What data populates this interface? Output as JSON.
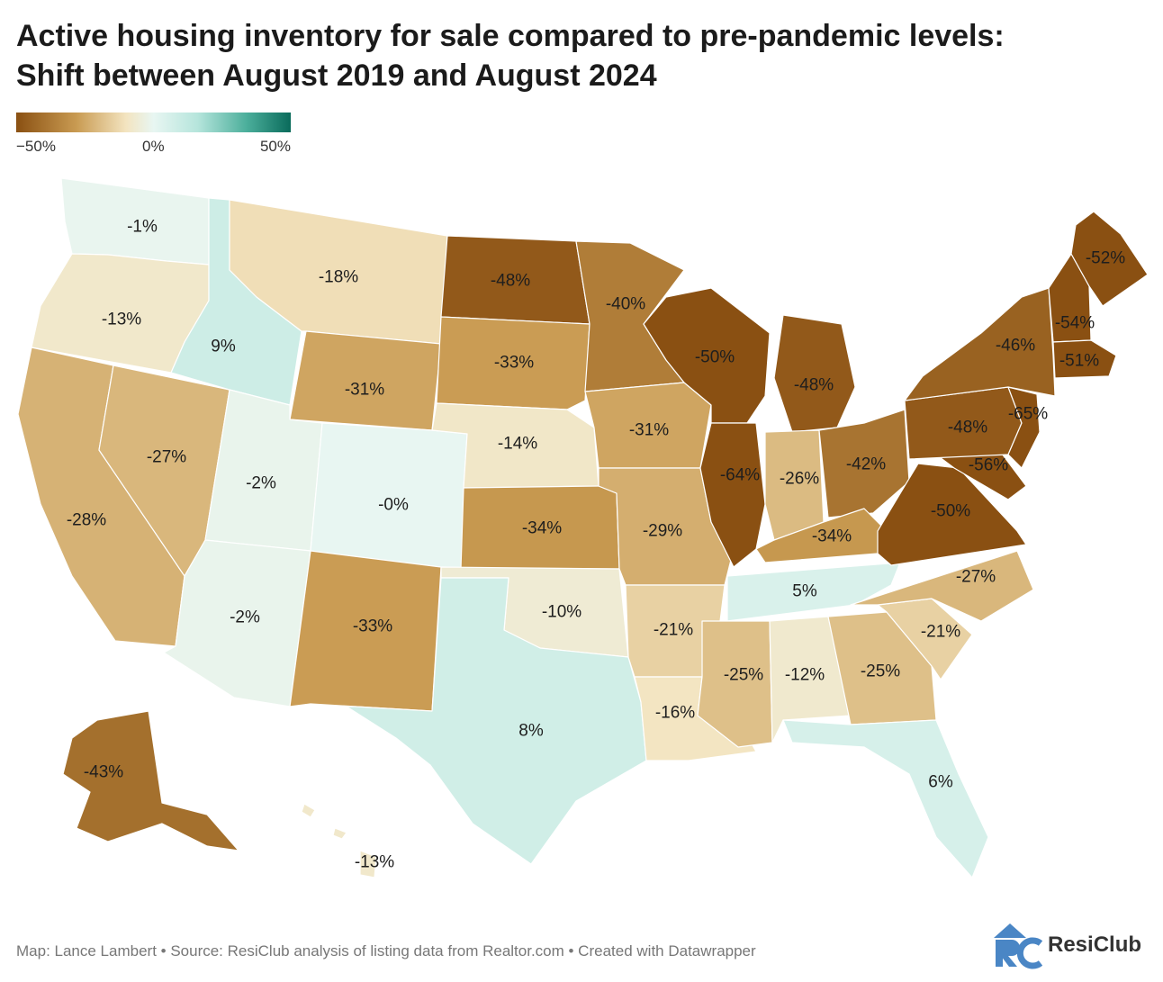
{
  "title": {
    "line1": "Active housing inventory for sale compared to pre-pandemic levels:",
    "line2": "Shift between August 2019 and August 2024"
  },
  "legend": {
    "min_label": "−50%",
    "mid_label": "0%",
    "max_label": "50%",
    "colors": [
      "#8a5012",
      "#c99b52",
      "#f3e4c0",
      "#e8f6f2",
      "#b6e5dc",
      "#4bae9b",
      "#0a6b5b"
    ]
  },
  "chart_data": {
    "type": "choropleth",
    "value_unit": "percent change",
    "color_domain": [
      -50,
      50
    ],
    "regions": [
      {
        "state": "Washington",
        "value": -1,
        "label": "-1%"
      },
      {
        "state": "Oregon",
        "value": -13,
        "label": "-13%"
      },
      {
        "state": "California",
        "value": -28,
        "label": "-28%"
      },
      {
        "state": "Nevada",
        "value": -27,
        "label": "-27%"
      },
      {
        "state": "Idaho",
        "value": 9,
        "label": "9%"
      },
      {
        "state": "Montana",
        "value": -18,
        "label": "-18%"
      },
      {
        "state": "Wyoming",
        "value": -31,
        "label": "-31%"
      },
      {
        "state": "Utah",
        "value": -2,
        "label": "-2%"
      },
      {
        "state": "Arizona",
        "value": -2,
        "label": "-2%"
      },
      {
        "state": "Colorado",
        "value": 0,
        "label": "-0%"
      },
      {
        "state": "New Mexico",
        "value": -33,
        "label": "-33%"
      },
      {
        "state": "North Dakota",
        "value": -48,
        "label": "-48%"
      },
      {
        "state": "South Dakota",
        "value": -33,
        "label": "-33%"
      },
      {
        "state": "Nebraska",
        "value": -14,
        "label": "-14%"
      },
      {
        "state": "Kansas",
        "value": -34,
        "label": "-34%"
      },
      {
        "state": "Oklahoma",
        "value": -10,
        "label": "-10%"
      },
      {
        "state": "Texas",
        "value": 8,
        "label": "8%"
      },
      {
        "state": "Minnesota",
        "value": -40,
        "label": "-40%"
      },
      {
        "state": "Iowa",
        "value": -31,
        "label": "-31%"
      },
      {
        "state": "Missouri",
        "value": -29,
        "label": "-29%"
      },
      {
        "state": "Arkansas",
        "value": -21,
        "label": "-21%"
      },
      {
        "state": "Louisiana",
        "value": -16,
        "label": "-16%"
      },
      {
        "state": "Wisconsin",
        "value": -50,
        "label": "-50%"
      },
      {
        "state": "Illinois",
        "value": -64,
        "label": "-64%"
      },
      {
        "state": "Michigan",
        "value": -48,
        "label": "-48%"
      },
      {
        "state": "Indiana",
        "value": -26,
        "label": "-26%"
      },
      {
        "state": "Ohio",
        "value": -42,
        "label": "-42%"
      },
      {
        "state": "Kentucky",
        "value": -34,
        "label": "-34%"
      },
      {
        "state": "Tennessee",
        "value": 5,
        "label": "5%"
      },
      {
        "state": "Mississippi",
        "value": -25,
        "label": "-25%"
      },
      {
        "state": "Alabama",
        "value": -12,
        "label": "-12%"
      },
      {
        "state": "Georgia",
        "value": -25,
        "label": "-25%"
      },
      {
        "state": "Florida",
        "value": 6,
        "label": "6%"
      },
      {
        "state": "South Carolina",
        "value": -21,
        "label": "-21%"
      },
      {
        "state": "North Carolina",
        "value": -27,
        "label": "-27%"
      },
      {
        "state": "Virginia",
        "value": -50,
        "label": "-50%"
      },
      {
        "state": "Maryland",
        "value": -56,
        "label": "-56%"
      },
      {
        "state": "Pennsylvania",
        "value": -48,
        "label": "-48%"
      },
      {
        "state": "New Jersey",
        "value": -65,
        "label": "-65%"
      },
      {
        "state": "New York",
        "value": -46,
        "label": "-46%"
      },
      {
        "state": "Vermont / New Hampshire",
        "value": -54,
        "label": "-54%"
      },
      {
        "state": "Massachusetts",
        "value": -51,
        "label": "-51%"
      },
      {
        "state": "Maine",
        "value": -52,
        "label": "-52%"
      },
      {
        "state": "Alaska",
        "value": -43,
        "label": "-43%"
      },
      {
        "state": "Hawaii",
        "value": -13,
        "label": "-13%"
      }
    ]
  },
  "footer": {
    "credit": "Map: Lance Lambert • Source: ResiClub analysis of listing data from Realtor.com • Created with Datawrapper"
  },
  "logo": {
    "text": "ResiClub",
    "color": "#4a86c5"
  }
}
